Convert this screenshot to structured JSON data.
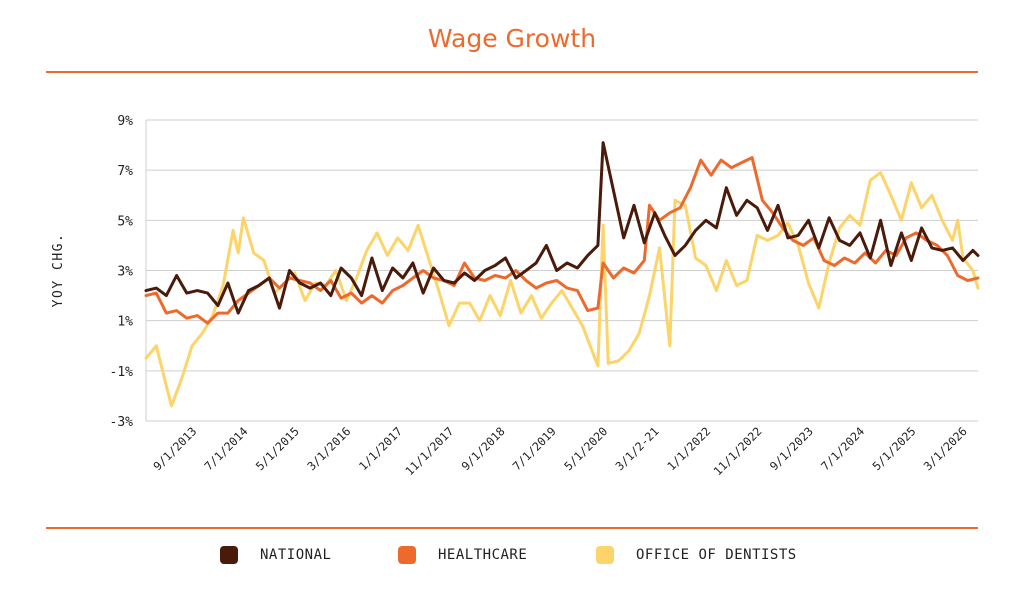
{
  "chart_data": {
    "type": "line",
    "title": "Wage Growth",
    "ylabel": "YOY CHG.",
    "ylim": [
      -3,
      9
    ],
    "yticks": [
      -3,
      -1,
      1,
      3,
      5,
      7,
      9
    ],
    "ytick_labels": [
      "-3%",
      "-1%",
      "1%",
      "3%",
      "5%",
      "7%",
      "9%"
    ],
    "xlim": [
      "2012-11-01",
      "2026-05-01"
    ],
    "xticks": [
      "2013-09-01",
      "2014-07-01",
      "2015-05-01",
      "2016-03-01",
      "2017-01-01",
      "2017-11-01",
      "2018-09-01",
      "2019-07-01",
      "2020-05-01",
      "2021-03-01",
      "2022-01-01",
      "2022-11-01",
      "2023-09-01",
      "2024-07-01",
      "2025-05-01",
      "2026-03-01"
    ],
    "xtick_labels": [
      "9/1/2013",
      "7/1/2014",
      "5/1/2015",
      "3/1/2016",
      "1/1/2017",
      "11/1/2017",
      "9/1/2018",
      "7/1/2019",
      "5/1/2020",
      "3/1/2-21",
      "1/1/2022",
      "11/1/2022",
      "9/1/2023",
      "7/1/2024",
      "5/1/2025",
      "3/1/2026"
    ],
    "grid": true,
    "legend_position": "bottom",
    "series": [
      {
        "name": "NATIONAL",
        "color": "#4a1a0a",
        "points": [
          [
            "2012-11-01",
            2.2
          ],
          [
            "2013-01-01",
            2.3
          ],
          [
            "2013-03-01",
            2.0
          ],
          [
            "2013-05-01",
            2.8
          ],
          [
            "2013-07-01",
            2.1
          ],
          [
            "2013-09-01",
            2.2
          ],
          [
            "2013-11-01",
            2.1
          ],
          [
            "2014-01-01",
            1.6
          ],
          [
            "2014-03-01",
            2.5
          ],
          [
            "2014-05-01",
            1.3
          ],
          [
            "2014-07-01",
            2.2
          ],
          [
            "2014-09-01",
            2.4
          ],
          [
            "2014-11-01",
            2.7
          ],
          [
            "2015-01-01",
            1.5
          ],
          [
            "2015-03-01",
            3.0
          ],
          [
            "2015-05-01",
            2.5
          ],
          [
            "2015-07-01",
            2.3
          ],
          [
            "2015-09-01",
            2.5
          ],
          [
            "2015-11-01",
            2.0
          ],
          [
            "2016-01-01",
            3.1
          ],
          [
            "2016-03-01",
            2.7
          ],
          [
            "2016-05-01",
            2.0
          ],
          [
            "2016-07-01",
            3.5
          ],
          [
            "2016-09-01",
            2.2
          ],
          [
            "2016-11-01",
            3.1
          ],
          [
            "2017-01-01",
            2.7
          ],
          [
            "2017-03-01",
            3.3
          ],
          [
            "2017-05-01",
            2.1
          ],
          [
            "2017-07-01",
            3.1
          ],
          [
            "2017-09-01",
            2.6
          ],
          [
            "2017-11-01",
            2.5
          ],
          [
            "2018-01-01",
            2.9
          ],
          [
            "2018-03-01",
            2.6
          ],
          [
            "2018-05-01",
            3.0
          ],
          [
            "2018-07-01",
            3.2
          ],
          [
            "2018-09-01",
            3.5
          ],
          [
            "2018-11-01",
            2.7
          ],
          [
            "2019-01-01",
            3.0
          ],
          [
            "2019-03-01",
            3.3
          ],
          [
            "2019-05-01",
            4.0
          ],
          [
            "2019-07-01",
            3.0
          ],
          [
            "2019-09-01",
            3.3
          ],
          [
            "2019-11-01",
            3.1
          ],
          [
            "2020-01-01",
            3.6
          ],
          [
            "2020-03-01",
            4.0
          ],
          [
            "2020-04-01",
            8.1
          ],
          [
            "2020-06-01",
            6.2
          ],
          [
            "2020-08-01",
            4.3
          ],
          [
            "2020-10-01",
            5.6
          ],
          [
            "2020-12-01",
            4.1
          ],
          [
            "2021-02-01",
            5.3
          ],
          [
            "2021-04-01",
            4.4
          ],
          [
            "2021-06-01",
            3.6
          ],
          [
            "2021-08-01",
            4.0
          ],
          [
            "2021-10-01",
            4.6
          ],
          [
            "2021-12-01",
            5.0
          ],
          [
            "2022-02-01",
            4.7
          ],
          [
            "2022-04-01",
            6.3
          ],
          [
            "2022-06-01",
            5.2
          ],
          [
            "2022-08-01",
            5.8
          ],
          [
            "2022-10-01",
            5.5
          ],
          [
            "2022-12-01",
            4.6
          ],
          [
            "2023-02-01",
            5.6
          ],
          [
            "2023-04-01",
            4.3
          ],
          [
            "2023-06-01",
            4.4
          ],
          [
            "2023-08-01",
            5.0
          ],
          [
            "2023-10-01",
            3.9
          ],
          [
            "2023-12-01",
            5.1
          ],
          [
            "2024-02-01",
            4.2
          ],
          [
            "2024-04-01",
            4.0
          ],
          [
            "2024-06-01",
            4.5
          ],
          [
            "2024-08-01",
            3.5
          ],
          [
            "2024-10-01",
            5.0
          ],
          [
            "2024-12-01",
            3.2
          ],
          [
            "2025-02-01",
            4.5
          ],
          [
            "2025-04-01",
            3.4
          ],
          [
            "2025-06-01",
            4.7
          ],
          [
            "2025-08-01",
            3.9
          ],
          [
            "2025-10-01",
            3.8
          ],
          [
            "2025-12-01",
            3.9
          ],
          [
            "2026-02-01",
            3.4
          ],
          [
            "2026-04-01",
            3.8
          ],
          [
            "2026-05-01",
            3.6
          ]
        ]
      },
      {
        "name": "HEALTHCARE",
        "color": "#ee6a2c",
        "points": [
          [
            "2012-11-01",
            2.0
          ],
          [
            "2013-01-01",
            2.1
          ],
          [
            "2013-03-01",
            1.3
          ],
          [
            "2013-05-01",
            1.4
          ],
          [
            "2013-07-01",
            1.1
          ],
          [
            "2013-09-01",
            1.2
          ],
          [
            "2013-11-01",
            0.9
          ],
          [
            "2014-01-01",
            1.3
          ],
          [
            "2014-03-01",
            1.3
          ],
          [
            "2014-05-01",
            1.8
          ],
          [
            "2014-07-01",
            2.1
          ],
          [
            "2014-09-01",
            2.4
          ],
          [
            "2014-11-01",
            2.7
          ],
          [
            "2015-01-01",
            2.3
          ],
          [
            "2015-03-01",
            2.7
          ],
          [
            "2015-05-01",
            2.6
          ],
          [
            "2015-07-01",
            2.5
          ],
          [
            "2015-09-01",
            2.2
          ],
          [
            "2015-11-01",
            2.6
          ],
          [
            "2016-01-01",
            1.9
          ],
          [
            "2016-03-01",
            2.1
          ],
          [
            "2016-05-01",
            1.7
          ],
          [
            "2016-07-01",
            2.0
          ],
          [
            "2016-09-01",
            1.7
          ],
          [
            "2016-11-01",
            2.2
          ],
          [
            "2017-01-01",
            2.4
          ],
          [
            "2017-03-01",
            2.7
          ],
          [
            "2017-05-01",
            3.0
          ],
          [
            "2017-07-01",
            2.7
          ],
          [
            "2017-09-01",
            2.6
          ],
          [
            "2017-11-01",
            2.4
          ],
          [
            "2018-01-01",
            3.3
          ],
          [
            "2018-03-01",
            2.7
          ],
          [
            "2018-05-01",
            2.6
          ],
          [
            "2018-07-01",
            2.8
          ],
          [
            "2018-09-01",
            2.7
          ],
          [
            "2018-11-01",
            3.0
          ],
          [
            "2019-01-01",
            2.6
          ],
          [
            "2019-03-01",
            2.3
          ],
          [
            "2019-05-01",
            2.5
          ],
          [
            "2019-07-01",
            2.6
          ],
          [
            "2019-09-01",
            2.3
          ],
          [
            "2019-11-01",
            2.2
          ],
          [
            "2020-01-01",
            1.4
          ],
          [
            "2020-03-01",
            1.5
          ],
          [
            "2020-04-01",
            3.3
          ],
          [
            "2020-06-01",
            2.7
          ],
          [
            "2020-08-01",
            3.1
          ],
          [
            "2020-10-01",
            2.9
          ],
          [
            "2020-12-01",
            3.4
          ],
          [
            "2021-01-01",
            5.6
          ],
          [
            "2021-03-01",
            5.0
          ],
          [
            "2021-05-01",
            5.3
          ],
          [
            "2021-07-01",
            5.5
          ],
          [
            "2021-09-01",
            6.3
          ],
          [
            "2021-11-01",
            7.4
          ],
          [
            "2022-01-01",
            6.8
          ],
          [
            "2022-03-01",
            7.4
          ],
          [
            "2022-05-01",
            7.1
          ],
          [
            "2022-07-01",
            7.3
          ],
          [
            "2022-09-01",
            7.5
          ],
          [
            "2022-11-01",
            5.8
          ],
          [
            "2023-01-01",
            5.3
          ],
          [
            "2023-03-01",
            4.7
          ],
          [
            "2023-05-01",
            4.2
          ],
          [
            "2023-07-01",
            4.0
          ],
          [
            "2023-09-01",
            4.3
          ],
          [
            "2023-11-01",
            3.4
          ],
          [
            "2024-01-01",
            3.2
          ],
          [
            "2024-03-01",
            3.5
          ],
          [
            "2024-05-01",
            3.3
          ],
          [
            "2024-07-01",
            3.7
          ],
          [
            "2024-09-01",
            3.3
          ],
          [
            "2024-11-01",
            3.8
          ],
          [
            "2025-01-01",
            3.6
          ],
          [
            "2025-03-01",
            4.3
          ],
          [
            "2025-05-01",
            4.5
          ],
          [
            "2025-07-01",
            4.2
          ],
          [
            "2025-09-01",
            4.0
          ],
          [
            "2025-11-01",
            3.6
          ],
          [
            "2026-01-01",
            2.8
          ],
          [
            "2026-03-01",
            2.6
          ],
          [
            "2026-05-01",
            2.7
          ]
        ]
      },
      {
        "name": "OFFICE OF DENTISTS",
        "color": "#fcd46a",
        "points": [
          [
            "2012-11-01",
            -0.5
          ],
          [
            "2013-01-01",
            0.0
          ],
          [
            "2013-03-01",
            -1.6
          ],
          [
            "2013-04-01",
            -2.4
          ],
          [
            "2013-06-01",
            -1.3
          ],
          [
            "2013-08-01",
            0.0
          ],
          [
            "2013-10-01",
            0.5
          ],
          [
            "2013-12-01",
            1.2
          ],
          [
            "2014-02-01",
            2.4
          ],
          [
            "2014-04-01",
            4.6
          ],
          [
            "2014-05-01",
            3.7
          ],
          [
            "2014-06-01",
            5.1
          ],
          [
            "2014-08-01",
            3.7
          ],
          [
            "2014-10-01",
            3.4
          ],
          [
            "2014-12-01",
            2.1
          ],
          [
            "2015-02-01",
            2.5
          ],
          [
            "2015-04-01",
            2.9
          ],
          [
            "2015-06-01",
            1.8
          ],
          [
            "2015-08-01",
            2.5
          ],
          [
            "2015-10-01",
            2.4
          ],
          [
            "2015-12-01",
            3.0
          ],
          [
            "2016-02-01",
            1.8
          ],
          [
            "2016-04-01",
            2.7
          ],
          [
            "2016-06-01",
            3.8
          ],
          [
            "2016-08-01",
            4.5
          ],
          [
            "2016-10-01",
            3.6
          ],
          [
            "2016-12-01",
            4.3
          ],
          [
            "2017-02-01",
            3.8
          ],
          [
            "2017-04-01",
            4.8
          ],
          [
            "2017-06-01",
            3.5
          ],
          [
            "2017-08-01",
            2.2
          ],
          [
            "2017-10-01",
            0.8
          ],
          [
            "2017-12-01",
            1.7
          ],
          [
            "2018-02-01",
            1.7
          ],
          [
            "2018-04-01",
            1.0
          ],
          [
            "2018-06-01",
            2.0
          ],
          [
            "2018-08-01",
            1.2
          ],
          [
            "2018-10-01",
            2.6
          ],
          [
            "2018-12-01",
            1.3
          ],
          [
            "2019-02-01",
            2.0
          ],
          [
            "2019-04-01",
            1.1
          ],
          [
            "2019-06-01",
            1.7
          ],
          [
            "2019-08-01",
            2.2
          ],
          [
            "2019-10-01",
            1.5
          ],
          [
            "2019-12-01",
            0.8
          ],
          [
            "2020-02-01",
            -0.3
          ],
          [
            "2020-03-01",
            -0.8
          ],
          [
            "2020-04-01",
            4.8
          ],
          [
            "2020-05-01",
            -0.7
          ],
          [
            "2020-07-01",
            -0.6
          ],
          [
            "2020-09-01",
            -0.2
          ],
          [
            "2020-11-01",
            0.5
          ],
          [
            "2021-01-01",
            2.0
          ],
          [
            "2021-03-01",
            3.9
          ],
          [
            "2021-05-01",
            0.0
          ],
          [
            "2021-06-01",
            5.8
          ],
          [
            "2021-08-01",
            5.6
          ],
          [
            "2021-10-01",
            3.5
          ],
          [
            "2021-12-01",
            3.2
          ],
          [
            "2022-02-01",
            2.2
          ],
          [
            "2022-04-01",
            3.4
          ],
          [
            "2022-06-01",
            2.4
          ],
          [
            "2022-08-01",
            2.6
          ],
          [
            "2022-10-01",
            4.4
          ],
          [
            "2022-12-01",
            4.2
          ],
          [
            "2023-02-01",
            4.4
          ],
          [
            "2023-04-01",
            4.9
          ],
          [
            "2023-06-01",
            4.0
          ],
          [
            "2023-08-01",
            2.5
          ],
          [
            "2023-10-01",
            1.5
          ],
          [
            "2023-12-01",
            3.3
          ],
          [
            "2024-02-01",
            4.7
          ],
          [
            "2024-04-01",
            5.2
          ],
          [
            "2024-06-01",
            4.8
          ],
          [
            "2024-08-01",
            6.6
          ],
          [
            "2024-10-01",
            6.9
          ],
          [
            "2024-12-01",
            6.0
          ],
          [
            "2025-02-01",
            5.0
          ],
          [
            "2025-04-01",
            6.5
          ],
          [
            "2025-06-01",
            5.5
          ],
          [
            "2025-08-01",
            6.0
          ],
          [
            "2025-10-01",
            5.0
          ],
          [
            "2025-12-01",
            4.2
          ],
          [
            "2026-01-01",
            5.0
          ],
          [
            "2026-02-01",
            3.5
          ],
          [
            "2026-04-01",
            3.0
          ],
          [
            "2026-05-01",
            2.3
          ]
        ]
      }
    ]
  }
}
